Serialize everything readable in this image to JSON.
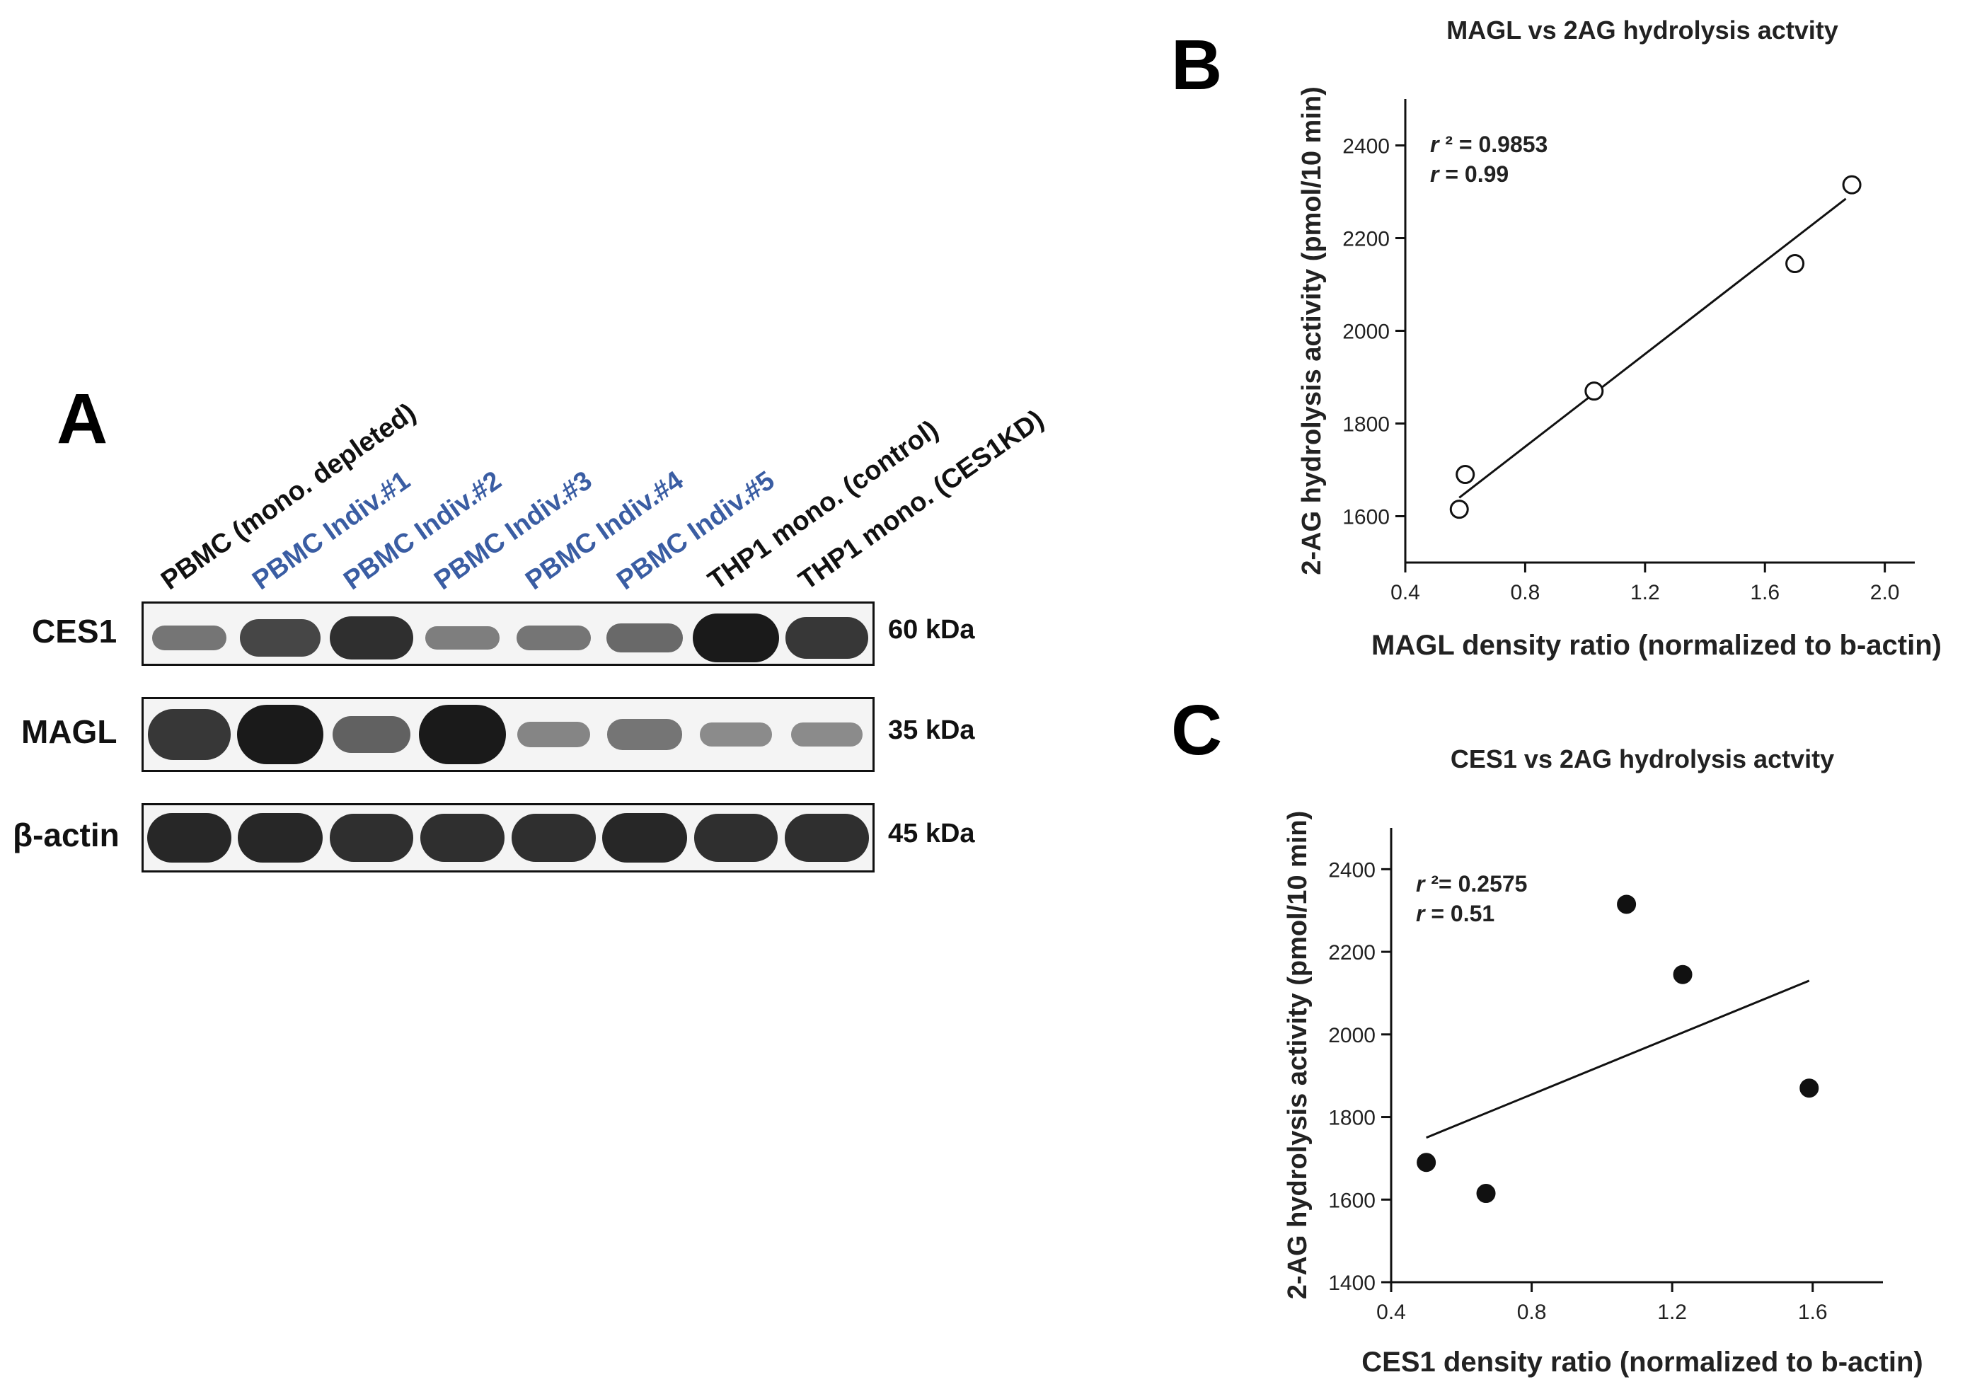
{
  "panels": {
    "a": "A",
    "b": "B",
    "c": "C"
  },
  "colors": {
    "black": "#111111",
    "blue": "#3a5da3"
  },
  "blot": {
    "lanes": [
      {
        "label": "PBMC (mono. depleted)",
        "color": "black"
      },
      {
        "label": "PBMC Indiv.#1",
        "color": "blue"
      },
      {
        "label": "PBMC Indiv.#2",
        "color": "blue"
      },
      {
        "label": "PBMC Indiv.#3",
        "color": "blue"
      },
      {
        "label": "PBMC Indiv.#4",
        "color": "blue"
      },
      {
        "label": "PBMC Indiv.#5",
        "color": "blue"
      },
      {
        "label": "THP1 mono. (control)",
        "color": "black"
      },
      {
        "label": "THP1 mono. (CES1KD)",
        "color": "black"
      }
    ],
    "rows": [
      {
        "protein": "CES1",
        "kda": "60 kDa",
        "intensity": [
          0.35,
          0.7,
          0.85,
          0.3,
          0.35,
          0.45,
          1.0,
          0.8
        ]
      },
      {
        "protein": "MAGL",
        "kda": "35 kDa",
        "intensity": [
          0.8,
          1.0,
          0.5,
          1.0,
          0.25,
          0.35,
          0.2,
          0.2
        ]
      },
      {
        "protein": "β-actin",
        "kda": "45 kDa",
        "intensity": [
          0.9,
          0.9,
          0.85,
          0.85,
          0.85,
          0.9,
          0.85,
          0.85
        ]
      }
    ]
  },
  "chart_data": [
    {
      "type": "scatter",
      "title": "MAGL vs 2AG hydrolysis actvity",
      "xlabel": "MAGL density ratio (normalized to b-actin)",
      "ylabel": "2-AG hydrolysis activity (pmol/10 min)",
      "xlim": [
        0.4,
        2.1
      ],
      "ylim": [
        1500,
        2500
      ],
      "xticks": [
        0.4,
        0.8,
        1.2,
        1.6,
        2.0
      ],
      "xtick_labels": [
        "0.4",
        "0.8",
        "1.2",
        "1.6",
        "2.0"
      ],
      "yticks": [
        1600,
        1800,
        2000,
        2200,
        2400
      ],
      "ytick_labels": [
        "1600",
        "1800",
        "2000",
        "2200",
        "2400"
      ],
      "marker": "open-circle",
      "points": [
        {
          "x": 0.58,
          "y": 1615
        },
        {
          "x": 0.6,
          "y": 1690
        },
        {
          "x": 1.03,
          "y": 1870
        },
        {
          "x": 1.7,
          "y": 2145
        },
        {
          "x": 1.89,
          "y": 2315
        }
      ],
      "fit_line": {
        "x": [
          0.58,
          1.87
        ],
        "y": [
          1640,
          2285
        ]
      },
      "annotation": [
        {
          "sym": "r",
          "rest": " ² = 0.9853"
        },
        {
          "sym": "r",
          "rest": " = 0.99"
        }
      ]
    },
    {
      "type": "scatter",
      "title": "CES1 vs 2AG hydrolysis actvity",
      "xlabel": "CES1 density ratio (normalized to b-actin)",
      "ylabel": "2-AG hydrolysis activity (pmol/10 min)",
      "xlim": [
        0.4,
        1.8
      ],
      "ylim": [
        1400,
        2500
      ],
      "xticks": [
        0.4,
        0.8,
        1.2,
        1.6
      ],
      "xtick_labels": [
        "0.4",
        "0.8",
        "1.2",
        "1.6"
      ],
      "yticks": [
        1400,
        1600,
        1800,
        2000,
        2200,
        2400
      ],
      "ytick_labels": [
        "1400",
        "1600",
        "1800",
        "2000",
        "2200",
        "2400"
      ],
      "marker": "filled-circle",
      "points": [
        {
          "x": 0.5,
          "y": 1690
        },
        {
          "x": 0.67,
          "y": 1615
        },
        {
          "x": 1.07,
          "y": 2315
        },
        {
          "x": 1.23,
          "y": 2145
        },
        {
          "x": 1.59,
          "y": 1870
        }
      ],
      "fit_line": {
        "x": [
          0.5,
          1.59
        ],
        "y": [
          1750,
          2130
        ]
      },
      "annotation": [
        {
          "sym": "r",
          "rest": " ²= 0.2575"
        },
        {
          "sym": "r",
          "rest": " = 0.51"
        }
      ]
    }
  ]
}
